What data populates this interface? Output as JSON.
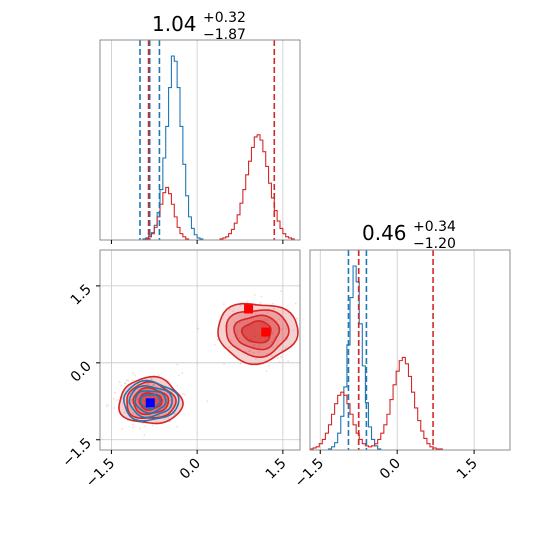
{
  "colors": {
    "blue": "#1f77b4",
    "red": "#d62728",
    "red_fill": "#e88a8b",
    "grid": "#c8c8c8",
    "marker_blue": "#0000ff",
    "marker_red": "#ff0000"
  },
  "chart_data": [
    {
      "type": "histogram",
      "panel": "top-left",
      "title": {
        "main": "1.04",
        "sup": "+0.32",
        "sub": "−1.87"
      },
      "xlim": [
        -1.7,
        1.8
      ],
      "series": [
        {
          "name": "blue",
          "color": "#1f77b4",
          "edges_start": -1.7,
          "bin_width": 0.05,
          "counts": [
            0,
            0,
            0,
            0,
            0,
            0,
            0,
            0,
            0,
            0,
            0,
            0,
            0,
            0,
            0,
            1,
            2,
            4,
            7,
            14,
            26,
            48,
            78,
            108,
            145,
            175,
            170,
            145,
            108,
            72,
            42,
            22,
            11,
            5,
            2,
            1,
            0,
            0,
            0,
            0,
            0,
            0,
            0,
            0,
            0,
            0,
            0,
            0,
            0,
            0,
            0,
            0,
            0,
            0,
            0,
            0,
            0,
            0,
            0,
            0,
            0,
            0,
            0,
            0,
            0,
            0,
            0,
            0,
            0,
            0
          ],
          "quantiles": [
            -1.0,
            -0.83,
            -0.66
          ]
        },
        {
          "name": "red",
          "color": "#d62728",
          "edges_start": -1.7,
          "bin_width": 0.05,
          "counts": [
            0,
            0,
            0,
            0,
            0,
            0,
            0,
            0,
            0,
            0,
            0,
            0,
            0,
            0,
            0,
            0,
            1,
            3,
            6,
            12,
            22,
            34,
            45,
            50,
            44,
            34,
            22,
            12,
            6,
            3,
            1,
            0,
            0,
            0,
            0,
            0,
            0,
            0,
            0,
            0,
            0,
            0,
            1,
            2,
            3,
            6,
            10,
            16,
            24,
            35,
            48,
            62,
            75,
            88,
            98,
            100,
            95,
            84,
            70,
            54,
            40,
            28,
            18,
            11,
            6,
            3,
            2,
            1,
            0,
            0
          ],
          "quantiles": [
            -0.85,
            1.35
          ]
        }
      ],
      "xticklabels": []
    },
    {
      "type": "scatter",
      "panel": "bottom-left",
      "xlim": [
        -1.7,
        1.8
      ],
      "ylim": [
        -1.7,
        2.2
      ],
      "xticks": [
        -1.5,
        0.0,
        1.5
      ],
      "yticks": [
        -1.5,
        0.0,
        1.5
      ],
      "xticklabels": [
        "−1.5",
        "0.0",
        "1.5"
      ],
      "yticklabels": [
        "−1.5",
        "0.0",
        "1.5"
      ],
      "clusters": [
        {
          "name": "red-cluster-1",
          "color": "#d62728",
          "center": [
            -0.82,
            -0.75
          ],
          "radius": [
            0.55,
            0.45
          ]
        },
        {
          "name": "blue-cluster",
          "color": "#1f77b4",
          "center": [
            -0.82,
            -0.75
          ],
          "radius": [
            0.48,
            0.38
          ]
        },
        {
          "name": "red-cluster-2",
          "color": "#d62728",
          "center": [
            1.05,
            0.6
          ],
          "radius": [
            0.7,
            0.58
          ]
        }
      ],
      "markers": [
        {
          "color": "#0000ff",
          "x": -0.82,
          "y": -0.78
        },
        {
          "color": "#ff0000",
          "x": 0.9,
          "y": 1.05
        },
        {
          "color": "#ff0000",
          "x": 1.2,
          "y": 0.6
        }
      ]
    },
    {
      "type": "histogram",
      "panel": "bottom-right",
      "title": {
        "main": "0.46",
        "sup": "+0.34",
        "sub": "−1.20"
      },
      "xlim": [
        -1.7,
        2.2
      ],
      "xticks": [
        -1.5,
        0.0,
        1.5
      ],
      "xticklabels": [
        "−1.5",
        "0.0",
        "1.5"
      ],
      "series": [
        {
          "name": "blue",
          "color": "#1f77b4",
          "edges_start": -1.7,
          "bin_width": 0.06,
          "counts": [
            0,
            0,
            0,
            0,
            0,
            0,
            1,
            3,
            7,
            16,
            32,
            60,
            100,
            145,
            175,
            160,
            120,
            80,
            45,
            22,
            10,
            4,
            1,
            0,
            0,
            0,
            0,
            0,
            0,
            0,
            0,
            0,
            0,
            0,
            0,
            0,
            0,
            0,
            0,
            0,
            0,
            0,
            0,
            0,
            0,
            0,
            0,
            0,
            0,
            0,
            0,
            0,
            0,
            0,
            0,
            0,
            0,
            0,
            0,
            0,
            0,
            0,
            0,
            0,
            0
          ],
          "quantiles": [
            -0.95,
            -0.75,
            -0.6
          ]
        },
        {
          "name": "red",
          "color": "#d62728",
          "edges_start": -1.7,
          "bin_width": 0.06,
          "counts": [
            1,
            2,
            3,
            6,
            10,
            16,
            24,
            34,
            44,
            52,
            55,
            52,
            44,
            34,
            24,
            16,
            10,
            6,
            4,
            3,
            4,
            6,
            10,
            16,
            24,
            34,
            48,
            62,
            75,
            85,
            88,
            82,
            70,
            55,
            40,
            28,
            18,
            11,
            6,
            3,
            2,
            1,
            1,
            0,
            0,
            0,
            0,
            0,
            0,
            0,
            0,
            0,
            0,
            0,
            0,
            0,
            0,
            0,
            0,
            0,
            0,
            0,
            0,
            0,
            0
          ],
          "quantiles": [
            -0.75,
            0.7
          ]
        }
      ]
    }
  ]
}
